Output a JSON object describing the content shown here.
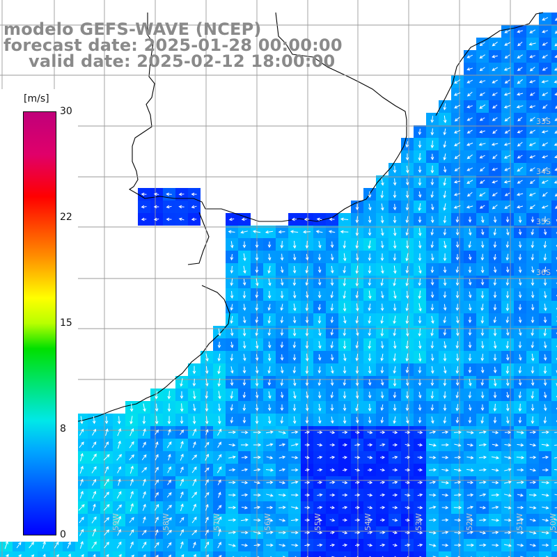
{
  "header": {
    "line1": "modelo GEFS-WAVE (NCEP)",
    "line2": "forecast date: 2025-01-28 00:00:00",
    "line3": "valid date: 2025-02-12 18:00:00"
  },
  "colorbar": {
    "unit": "[m/s]",
    "min": 0,
    "max": 30,
    "ticks": [
      "30",
      "22",
      "15",
      "8",
      "0"
    ],
    "colors": [
      "#0000ff",
      "#0050ff",
      "#00a8ff",
      "#00e8e8",
      "#00e000",
      "#ffff00",
      "#ff8c00",
      "#ff0000",
      "#c0007a"
    ]
  },
  "lat_labels": [
    "33S",
    "34S",
    "35S",
    "36S"
  ],
  "lon_labels": [
    "59W",
    "58W",
    "57W",
    "56W",
    "55W",
    "54W",
    "53W",
    "52W",
    "51W",
    "50W"
  ],
  "field": {
    "variable": "wind",
    "level_typical_ms": [
      2,
      5
    ],
    "dominant_direction": "southward offshore, northeastward near coast",
    "colors": {
      "land": "#ffffff",
      "grid": "#999999",
      "coast": "#000000",
      "arrows": "#ffffff"
    }
  }
}
